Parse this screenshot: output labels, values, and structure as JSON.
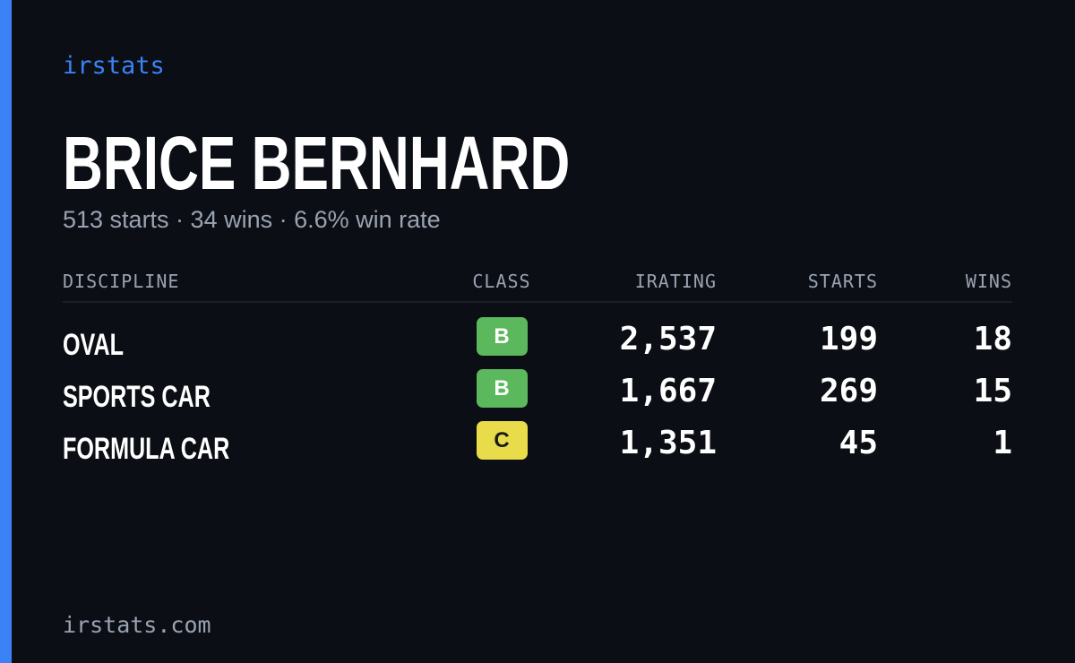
{
  "brand": "irstats",
  "driver": {
    "name": "BRICE BERNHARD",
    "summary": "513 starts · 34 wins · 6.6% win rate"
  },
  "table": {
    "columns": [
      "DISCIPLINE",
      "CLASS",
      "IRATING",
      "STARTS",
      "WINS"
    ],
    "rows": [
      [
        "OVAL",
        "B",
        "2,537",
        "199",
        "18"
      ],
      [
        "SPORTS CAR",
        "B",
        "1,667",
        "269",
        "15"
      ],
      [
        "FORMULA CAR",
        "C",
        "1,351",
        "45",
        "1"
      ]
    ]
  },
  "footer": "irstats.com"
}
